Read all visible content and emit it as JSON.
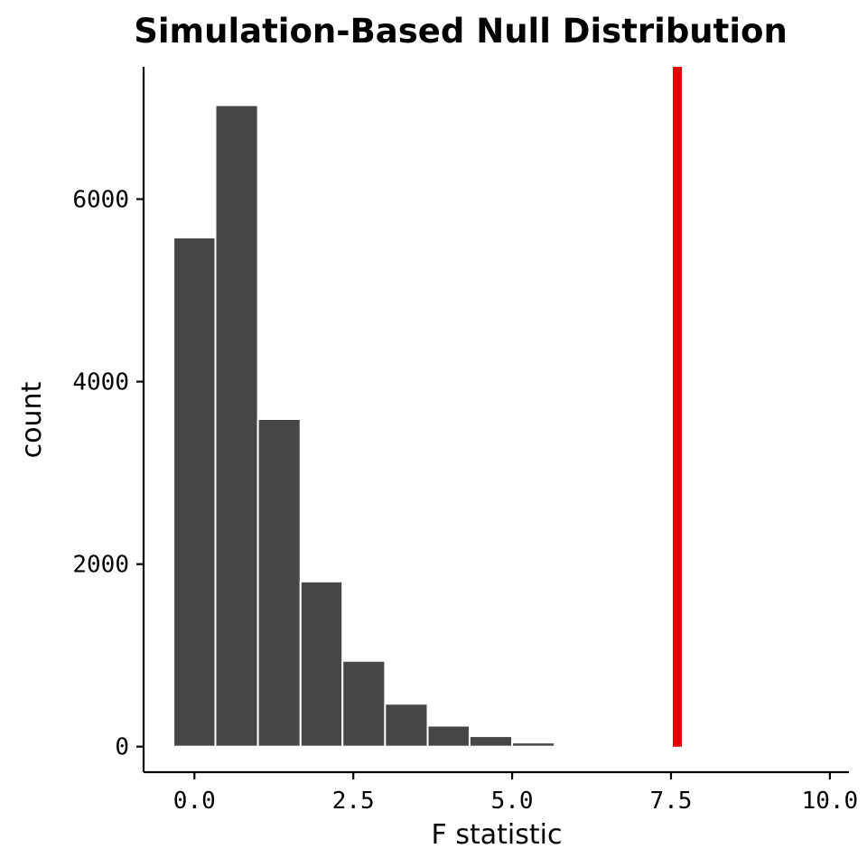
{
  "chart_data": {
    "type": "bar",
    "title": "Simulation-Based Null Distribution",
    "xlabel": "F statistic",
    "ylabel": "count",
    "xlim": [
      -0.8,
      10.3
    ],
    "ylim": [
      -280,
      7450
    ],
    "x_ticks": [
      0,
      2.5,
      5,
      7.5,
      10
    ],
    "x_tick_labels": [
      "0.0",
      "2.5",
      "5.0",
      "7.5",
      "10.0"
    ],
    "y_ticks": [
      0,
      2000,
      4000,
      6000
    ],
    "y_tick_labels": [
      "0",
      "2000",
      "4000",
      "6000"
    ],
    "bins": [
      {
        "x_start": -0.33,
        "x_end": 0.33,
        "count": 5580
      },
      {
        "x_start": 0.33,
        "x_end": 1.0,
        "count": 7030
      },
      {
        "x_start": 1.0,
        "x_end": 1.67,
        "count": 3590
      },
      {
        "x_start": 1.67,
        "x_end": 2.33,
        "count": 1810
      },
      {
        "x_start": 2.33,
        "x_end": 3.0,
        "count": 940
      },
      {
        "x_start": 3.0,
        "x_end": 3.67,
        "count": 470
      },
      {
        "x_start": 3.67,
        "x_end": 4.33,
        "count": 230
      },
      {
        "x_start": 4.33,
        "x_end": 5.0,
        "count": 115
      },
      {
        "x_start": 5.0,
        "x_end": 5.67,
        "count": 45
      },
      {
        "x_start": 5.67,
        "x_end": 6.33,
        "count": 18
      },
      {
        "x_start": 6.33,
        "x_end": 7.0,
        "count": 6
      },
      {
        "x_start": 7.0,
        "x_end": 7.67,
        "count": 3
      },
      {
        "x_start": 7.67,
        "x_end": 8.33,
        "count": 2
      },
      {
        "x_start": 8.33,
        "x_end": 9.0,
        "count": 2
      },
      {
        "x_start": 9.0,
        "x_end": 9.67,
        "count": 1
      }
    ],
    "observed_statistic": 7.6,
    "bar_color": "#474747",
    "observed_line_color": "#e00000",
    "grid": false
  }
}
